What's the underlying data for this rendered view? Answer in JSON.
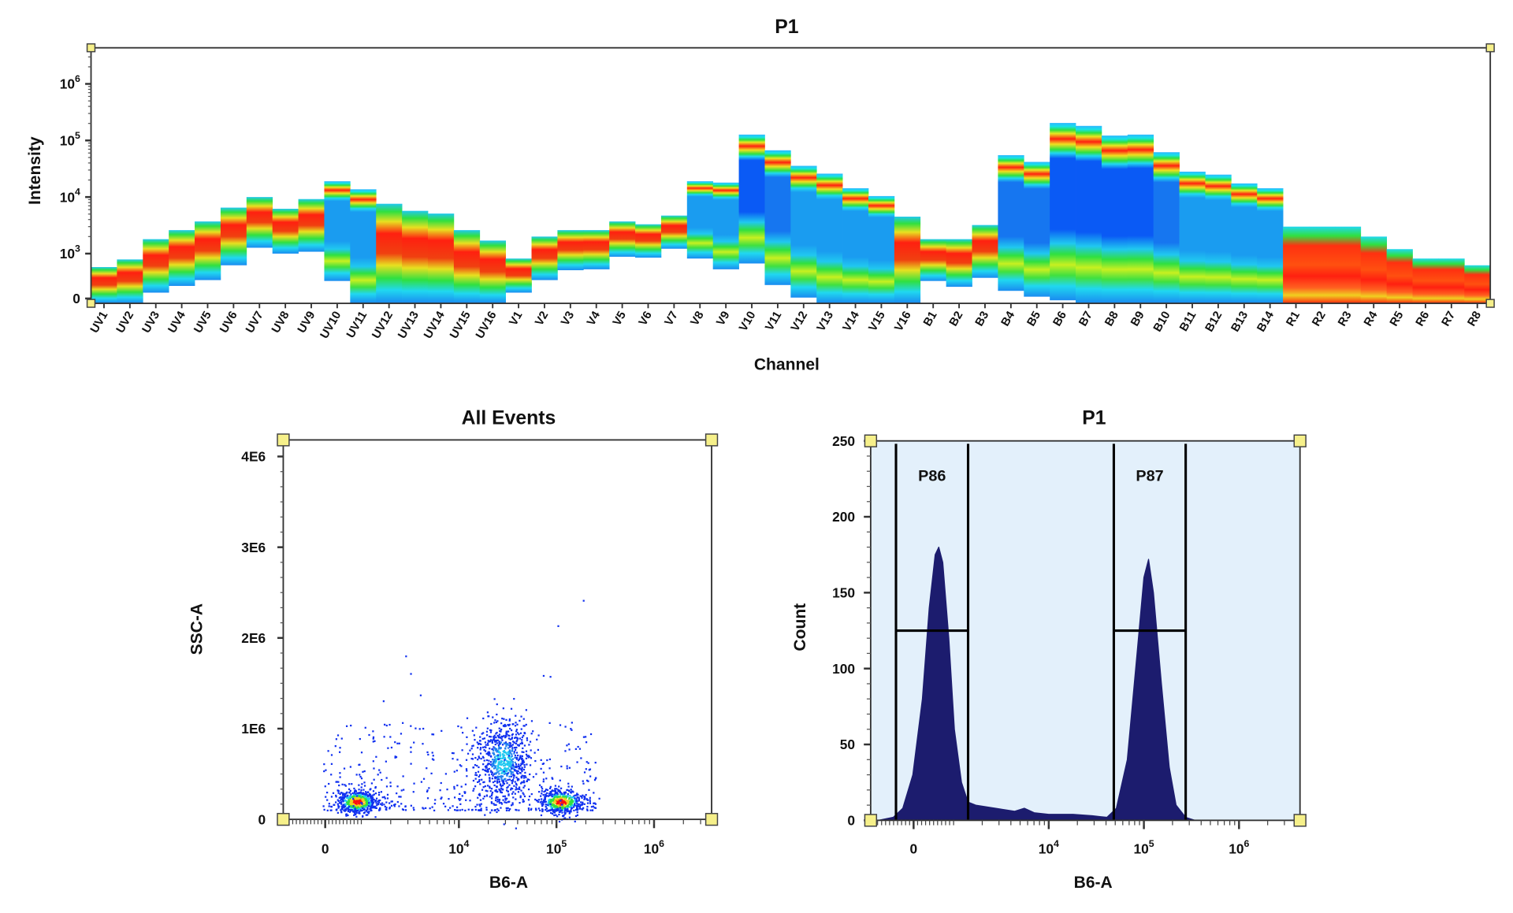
{
  "chart_data": [
    {
      "type": "heatmap",
      "title": "P1",
      "xlabel": "Channel",
      "ylabel": "Intensity",
      "yscale": "biexponential-log",
      "yticks": [
        {
          "base": "0",
          "exp": ""
        },
        {
          "base": "10",
          "exp": "3"
        },
        {
          "base": "10",
          "exp": "4"
        },
        {
          "base": "10",
          "exp": "5"
        },
        {
          "base": "10",
          "exp": "6"
        }
      ],
      "ytick_values": [
        0,
        1000,
        10000,
        100000,
        1000000
      ],
      "channels": [
        "UV1",
        "UV2",
        "UV3",
        "UV4",
        "UV5",
        "UV6",
        "UV7",
        "UV8",
        "UV9",
        "UV10",
        "UV11",
        "UV12",
        "UV13",
        "UV14",
        "UV15",
        "UV16",
        "V1",
        "V2",
        "V3",
        "V4",
        "V5",
        "V6",
        "V7",
        "V8",
        "V9",
        "V10",
        "V11",
        "V12",
        "V13",
        "V14",
        "V15",
        "V16",
        "B1",
        "B2",
        "B3",
        "B4",
        "B5",
        "B6",
        "B7",
        "B8",
        "B9",
        "B10",
        "B11",
        "B12",
        "B13",
        "B14",
        "R1",
        "R2",
        "R3",
        "R4",
        "R5",
        "R6",
        "R7",
        "R8"
      ],
      "max_intensity": [
        700,
        870,
        1800,
        2600,
        3700,
        6500,
        10000,
        6200,
        9200,
        19000,
        13700,
        7600,
        5700,
        5100,
        2600,
        1700,
        890,
        2000,
        2600,
        2600,
        3700,
        3300,
        4700,
        19000,
        18000,
        127000,
        67000,
        35600,
        25900,
        14300,
        10400,
        4500,
        1800,
        1800,
        3200,
        55000,
        41800,
        204000,
        181000,
        122000,
        127000,
        62000,
        28100,
        24900,
        17400,
        14300,
        3000,
        3000,
        3000,
        2000,
        1200,
        890,
        890,
        740
      ],
      "min_intensity": [
        -100,
        -100,
        130,
        280,
        410,
        740,
        1270,
        1000,
        1080,
        390,
        -100,
        -100,
        -100,
        -100,
        -100,
        -100,
        130,
        410,
        630,
        650,
        930,
        910,
        1220,
        890,
        650,
        780,
        300,
        20,
        -100,
        -100,
        -100,
        -100,
        390,
        260,
        460,
        170,
        40,
        -40,
        -100,
        -100,
        -100,
        -100,
        -100,
        -100,
        -100,
        -100,
        -100,
        -100,
        -100,
        -100,
        -100,
        -100,
        -100,
        -100
      ]
    },
    {
      "type": "scatter",
      "title": "All Events",
      "xlabel": "B6-A",
      "ylabel": "SSC-A",
      "xscale": "biexponential-log",
      "xticks": [
        {
          "base": "0",
          "exp": ""
        },
        {
          "base": "10",
          "exp": "4"
        },
        {
          "base": "10",
          "exp": "5"
        },
        {
          "base": "10",
          "exp": "6"
        }
      ],
      "xtick_values": [
        0,
        10000,
        100000,
        1000000
      ],
      "yticks": [
        "0",
        "1E6",
        "2E6",
        "3E6",
        "4E6"
      ],
      "ytick_values": [
        0,
        1000000,
        2000000,
        3000000,
        4000000
      ],
      "clusters": [
        {
          "x": 870,
          "y": 200000
        },
        {
          "x": 28000,
          "y": 650000
        },
        {
          "x": 110000,
          "y": 200000
        }
      ]
    },
    {
      "type": "area",
      "title": "P1",
      "xlabel": "B6-A",
      "ylabel": "Count",
      "xscale": "biexponential-log",
      "xticks": [
        {
          "base": "0",
          "exp": ""
        },
        {
          "base": "10",
          "exp": "4"
        },
        {
          "base": "10",
          "exp": "5"
        },
        {
          "base": "10",
          "exp": "6"
        }
      ],
      "xtick_values": [
        0,
        10000,
        100000,
        1000000
      ],
      "yticks": [
        "0",
        "50",
        "100",
        "150",
        "200",
        "250"
      ],
      "ylim": [
        0,
        250
      ],
      "x": [
        -880,
        -510,
        -270,
        -20,
        220,
        390,
        540,
        630,
        730,
        880,
        1020,
        1210,
        1420,
        1710,
        2740,
        4390,
        5560,
        7030,
        10000,
        18000,
        28700,
        40900,
        51400,
        67000,
        84800,
        100000,
        112000,
        126000,
        153000,
        185000,
        218000,
        275000,
        345000
      ],
      "counts": [
        0,
        2,
        8,
        30,
        80,
        140,
        175,
        180,
        170,
        120,
        60,
        25,
        12,
        10,
        8,
        6,
        8,
        5,
        4,
        4,
        3,
        2,
        8,
        40,
        110,
        160,
        172,
        150,
        90,
        35,
        10,
        2,
        0
      ],
      "gates": [
        {
          "name": "P86",
          "x_range": [
            -440,
            1420
          ],
          "count_level": 125
        },
        {
          "name": "P87",
          "x_range": [
            48300,
            275000
          ],
          "count_level": 125
        }
      ],
      "colors": {
        "fill": "#1c1c6e",
        "plot_background": "#e3f0fb"
      }
    }
  ]
}
